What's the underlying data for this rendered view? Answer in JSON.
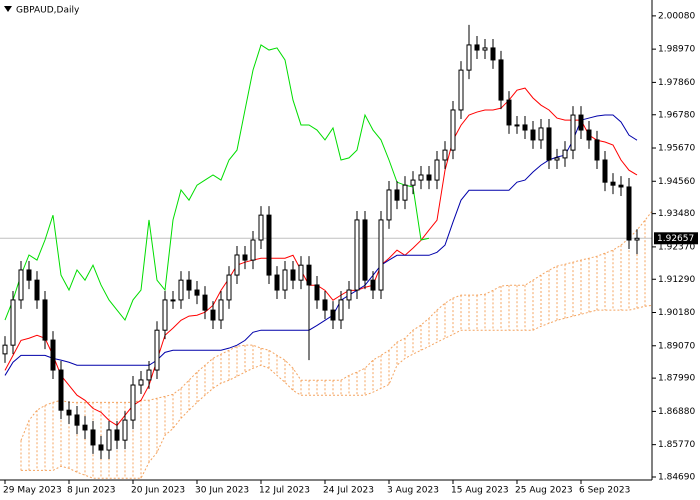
{
  "chart_data": {
    "type": "candlestick",
    "title": "GBPAUD,Daily",
    "categories": [
      "29 May 2023",
      null,
      null,
      null,
      null,
      null,
      null,
      null,
      "8 Jun 2023",
      null,
      null,
      null,
      null,
      null,
      null,
      null,
      "20 Jun 2023",
      null,
      null,
      null,
      null,
      null,
      null,
      null,
      "30 Jun 2023",
      null,
      null,
      null,
      null,
      null,
      null,
      null,
      "12 Jul 2023",
      null,
      null,
      null,
      null,
      null,
      null,
      null,
      "24 Jul 2023",
      null,
      null,
      null,
      null,
      null,
      null,
      null,
      "3 Aug 2023",
      null,
      null,
      null,
      null,
      null,
      null,
      null,
      "15 Aug 2023",
      null,
      null,
      null,
      null,
      null,
      null,
      null,
      "25 Aug 2023",
      null,
      null,
      null,
      null,
      null,
      null,
      null,
      "6 Sep 2023",
      null,
      null,
      null,
      null,
      null,
      null,
      null,
      null,
      null
    ],
    "open": [
      1.888,
      1.8909,
      1.906,
      1.916,
      1.9126,
      1.906,
      1.8926,
      1.8826,
      1.8692,
      1.8676,
      1.8642,
      1.8626,
      1.8576,
      1.8559,
      1.8626,
      1.8592,
      1.8659,
      1.8776,
      1.8793,
      1.8826,
      1.8959,
      1.906,
      1.906,
      1.9126,
      1.9093,
      1.9076,
      1.9026,
      1.8993,
      1.906,
      1.9143,
      1.921,
      1.9193,
      1.926,
      1.9343,
      1.9143,
      1.9093,
      1.916,
      1.9126,
      1.9176,
      1.911,
      1.906,
      1.9026,
      1.8993,
      1.906,
      1.9093,
      1.9327,
      1.9126,
      1.9093,
      1.9327,
      1.9427,
      1.9393,
      1.9443,
      1.946,
      1.9477,
      1.946,
      1.9527,
      1.956,
      1.9694,
      1.9827,
      1.9911,
      1.9894,
      1.9901,
      1.9861,
      1.9727,
      1.9644,
      1.9644,
      1.9627,
      1.9594,
      1.9634,
      1.9527,
      1.9534,
      1.956,
      1.9677,
      1.9627,
      1.9594,
      1.9527,
      1.9453,
      1.9443,
      1.9437,
      1.926,
      null,
      null
    ],
    "high": [
      1.8939,
      1.909,
      1.919,
      1.919,
      1.9156,
      1.909,
      1.8956,
      1.8856,
      1.8722,
      1.8706,
      1.8672,
      1.8656,
      1.8606,
      1.8656,
      1.8656,
      1.8689,
      1.8806,
      1.8823,
      1.8856,
      1.8989,
      1.909,
      1.909,
      1.9156,
      1.9156,
      1.9123,
      1.9106,
      1.9056,
      1.909,
      1.9173,
      1.924,
      1.924,
      1.929,
      1.9373,
      1.9373,
      1.9173,
      1.919,
      1.919,
      1.9206,
      1.9206,
      1.914,
      1.909,
      1.9056,
      1.909,
      1.9123,
      1.9357,
      1.9357,
      1.9156,
      1.9357,
      1.9457,
      1.9457,
      1.9473,
      1.949,
      1.9507,
      1.9507,
      1.9557,
      1.959,
      1.9724,
      1.9857,
      1.9978,
      1.9941,
      1.9931,
      1.9931,
      1.9891,
      1.9757,
      1.9674,
      1.9674,
      1.9657,
      1.9664,
      1.9664,
      1.9564,
      1.959,
      1.9707,
      1.9707,
      1.9657,
      1.9624,
      1.9557,
      1.9483,
      1.9473,
      1.9467,
      1.9296,
      null,
      null
    ],
    "low": [
      1.885,
      1.8879,
      1.903,
      1.9096,
      1.903,
      1.8896,
      1.8796,
      1.8662,
      1.8646,
      1.8612,
      1.8596,
      1.8546,
      1.8529,
      1.8529,
      1.8562,
      1.8562,
      1.8629,
      1.8746,
      1.8763,
      1.8796,
      1.8929,
      1.903,
      1.903,
      1.9063,
      1.9046,
      1.8996,
      1.8963,
      1.8963,
      1.903,
      1.9113,
      1.9163,
      1.9163,
      1.923,
      1.9113,
      1.9063,
      1.9063,
      1.9096,
      1.9096,
      1.8859,
      1.903,
      1.8996,
      1.8963,
      1.8963,
      1.903,
      1.9063,
      1.9096,
      1.9063,
      1.9063,
      1.9297,
      1.9363,
      1.9363,
      1.9413,
      1.943,
      1.943,
      1.943,
      1.9497,
      1.953,
      1.9664,
      1.9797,
      1.9864,
      1.9864,
      1.9831,
      1.9697,
      1.9614,
      1.9614,
      1.9597,
      1.9564,
      1.9564,
      1.9497,
      1.9497,
      1.9504,
      1.953,
      1.9597,
      1.9564,
      1.9497,
      1.9423,
      1.9413,
      1.9407,
      1.923,
      1.9213,
      null,
      null
    ],
    "close": [
      1.8909,
      1.906,
      1.916,
      1.9126,
      1.906,
      1.8926,
      1.8826,
      1.8692,
      1.8676,
      1.8642,
      1.8626,
      1.8576,
      1.8559,
      1.8626,
      1.8592,
      1.8659,
      1.8776,
      1.8793,
      1.8826,
      1.8959,
      1.906,
      1.906,
      1.9126,
      1.9093,
      1.9076,
      1.9026,
      1.8993,
      1.906,
      1.9143,
      1.921,
      1.9193,
      1.926,
      1.9343,
      1.9143,
      1.9093,
      1.916,
      1.9126,
      1.9176,
      1.911,
      1.906,
      1.9026,
      1.8993,
      1.906,
      1.9093,
      1.9327,
      1.9126,
      1.9093,
      1.9327,
      1.9427,
      1.9393,
      1.9443,
      1.946,
      1.9477,
      1.946,
      1.9527,
      1.956,
      1.9694,
      1.9827,
      1.9911,
      1.9894,
      1.9901,
      1.9861,
      1.9727,
      1.9644,
      1.9644,
      1.9627,
      1.9594,
      1.9634,
      1.9527,
      1.9534,
      1.956,
      1.9677,
      1.9627,
      1.9594,
      1.9527,
      1.9453,
      1.9443,
      1.9437,
      1.926,
      1.92657,
      null,
      null
    ],
    "candle_colors": {
      "up": "#ffffff",
      "down": "#000000",
      "edge": "#000000"
    },
    "lines": [
      {
        "color": "#ff0000",
        "values": [
          1.8825,
          1.8875,
          1.8925,
          1.8932,
          1.8942,
          1.8932,
          1.8875,
          1.8808,
          1.8775,
          1.8742,
          1.8725,
          1.8698,
          1.8685,
          1.8658,
          1.8641,
          1.8675,
          1.8708,
          1.8725,
          1.8775,
          1.8859,
          1.8942,
          1.8966,
          1.8992,
          1.9006,
          1.9009,
          1.9019,
          1.9042,
          1.9092,
          1.9132,
          1.9176,
          1.9186,
          1.9193,
          1.9199,
          1.9199,
          1.9199,
          1.9199,
          1.9209,
          1.9159,
          1.9109,
          1.9109,
          1.9092,
          1.9059,
          1.9076,
          1.9092,
          1.9092,
          1.9102,
          1.9109,
          1.9176,
          1.9199,
          1.9226,
          1.9209,
          1.9233,
          1.9259,
          1.9293,
          1.9326,
          1.9493,
          1.9593,
          1.9643,
          1.9677,
          1.9687,
          1.9694,
          1.9694,
          1.97,
          1.9727,
          1.976,
          1.9767,
          1.9734,
          1.971,
          1.9694,
          1.9667,
          1.966,
          1.966,
          1.966,
          1.961,
          1.9593,
          1.9587,
          1.9577,
          1.9527,
          1.9493,
          1.9477,
          null,
          null
        ]
      },
      {
        "color": "#0000aa",
        "values": [
          1.8808,
          1.8852,
          1.8875,
          1.8875,
          1.8875,
          1.8875,
          1.8865,
          1.8859,
          1.8852,
          1.8842,
          1.8842,
          1.8842,
          1.8842,
          1.8842,
          1.8842,
          1.8842,
          1.8842,
          1.8842,
          1.8842,
          1.8859,
          1.8885,
          1.8892,
          1.8892,
          1.8892,
          1.8892,
          1.8892,
          1.8892,
          1.8892,
          1.8899,
          1.8909,
          1.8925,
          1.8952,
          1.8959,
          1.8959,
          1.8959,
          1.8959,
          1.8959,
          1.8959,
          1.8959,
          1.8975,
          1.8992,
          1.9009,
          1.9059,
          1.9076,
          1.9092,
          1.9109,
          1.9142,
          1.9176,
          1.9193,
          1.9209,
          1.9209,
          1.9209,
          1.9209,
          1.9209,
          1.9219,
          1.9243,
          1.932,
          1.9393,
          1.9426,
          1.9426,
          1.9426,
          1.9426,
          1.9426,
          1.9426,
          1.9453,
          1.946,
          1.9487,
          1.951,
          1.9527,
          1.9537,
          1.9543,
          1.9593,
          1.966,
          1.9667,
          1.9674,
          1.9677,
          1.9677,
          1.9654,
          1.961,
          1.9593,
          null,
          null
        ]
      },
      {
        "color": "#00dd00",
        "values": [
          1.8993,
          1.906,
          1.9143,
          1.921,
          1.9193,
          1.926,
          1.9343,
          1.9143,
          1.9093,
          1.916,
          1.9126,
          1.9176,
          1.911,
          1.906,
          1.9026,
          1.8993,
          1.906,
          1.9093,
          1.9327,
          1.9126,
          1.9093,
          1.9327,
          1.9427,
          1.9393,
          1.9443,
          1.946,
          1.9477,
          1.946,
          1.9527,
          1.956,
          1.9694,
          1.9827,
          1.9911,
          1.9894,
          1.9901,
          1.9861,
          1.9727,
          1.9644,
          1.9644,
          1.9627,
          1.9594,
          1.9634,
          1.9527,
          1.9534,
          1.956,
          1.9677,
          1.9627,
          1.9594,
          1.9527,
          1.9453,
          1.9443,
          1.9437,
          1.926,
          1.92657,
          null,
          null,
          null,
          null,
          null,
          null,
          null,
          null,
          null,
          null,
          null,
          null,
          null,
          null,
          null,
          null,
          null,
          null,
          null,
          null,
          null,
          null,
          null,
          null
        ]
      }
    ],
    "cloud": {
      "color": "#f4a460",
      "upper": [
        null,
        null,
        1.8591,
        1.8658,
        1.8692,
        1.8708,
        1.8718,
        1.8725,
        1.8718,
        1.8718,
        1.8718,
        1.8718,
        1.8718,
        1.8718,
        1.8718,
        1.8718,
        1.8718,
        1.8725,
        1.8725,
        1.8732,
        1.8738,
        1.8745,
        1.8765,
        1.8792,
        1.8819,
        1.8842,
        1.8865,
        1.8879,
        1.8892,
        1.8905,
        1.8909,
        1.8909,
        1.8899,
        1.8892,
        1.8875,
        1.8859,
        1.8832,
        1.8792,
        1.8792,
        1.8792,
        1.8792,
        1.8792,
        1.8792,
        1.8808,
        1.8819,
        1.8832,
        1.8859,
        1.8875,
        1.8892,
        1.8919,
        1.8932,
        1.8959,
        1.8976,
        1.8999,
        1.9026,
        1.9049,
        1.9066,
        1.9076,
        1.9076,
        1.9076,
        1.9079,
        1.9092,
        1.9106,
        1.9109,
        1.9109,
        1.9109,
        1.9126,
        1.9143,
        1.9159,
        1.9173,
        1.9179,
        1.9186,
        1.9193,
        1.9199,
        1.9206,
        1.9216,
        1.9226,
        1.9243,
        1.9266,
        1.9293,
        1.9326,
        1.936
      ],
      "lower": [
        null,
        null,
        1.8491,
        1.8491,
        1.8491,
        1.8491,
        1.8491,
        1.8505,
        1.8498,
        1.8485,
        1.8475,
        1.8465,
        1.8465,
        1.8465,
        1.8465,
        1.8465,
        1.8465,
        1.8465,
        1.8518,
        1.8551,
        1.8608,
        1.8631,
        1.8665,
        1.8692,
        1.8718,
        1.8742,
        1.8765,
        1.8782,
        1.8792,
        1.8805,
        1.8819,
        1.8832,
        1.8842,
        1.8832,
        1.8808,
        1.8785,
        1.8758,
        1.8742,
        1.8742,
        1.8742,
        1.8742,
        1.8742,
        1.8742,
        1.8742,
        1.8742,
        1.8742,
        1.8752,
        1.8765,
        1.8778,
        1.8842,
        1.8865,
        1.8879,
        1.8892,
        1.8905,
        1.8919,
        1.8932,
        1.8945,
        1.8959,
        1.8959,
        1.8959,
        1.8959,
        1.8959,
        1.8959,
        1.8959,
        1.8959,
        1.8959,
        1.8959,
        1.8972,
        1.8982,
        1.8992,
        1.8999,
        1.9006,
        1.9012,
        1.9019,
        1.9026,
        1.9026,
        1.9026,
        1.9026,
        1.9026,
        1.9032,
        1.9039,
        1.9042
      ]
    },
    "last_price": {
      "value": 1.92657,
      "label": "1.92657"
    },
    "ylim": [
      1.8449,
      2.0061
    ],
    "yticks": [
      {
        "value": 2.0008,
        "label": "2.00080"
      },
      {
        "value": 1.9897,
        "label": "1.98970"
      },
      {
        "value": 1.9786,
        "label": "1.97860"
      },
      {
        "value": 1.9678,
        "label": "1.96780"
      },
      {
        "value": 1.9567,
        "label": "1.95670"
      },
      {
        "value": 1.9456,
        "label": "1.94560"
      },
      {
        "value": 1.9348,
        "label": "1.93480"
      },
      {
        "value": 1.9237,
        "label": "1.92370"
      },
      {
        "value": 1.9129,
        "label": "1.91290"
      },
      {
        "value": 1.9018,
        "label": "1.90180"
      },
      {
        "value": 1.8907,
        "label": "1.89070"
      },
      {
        "value": 1.8799,
        "label": "1.87990"
      },
      {
        "value": 1.8688,
        "label": "1.86880"
      },
      {
        "value": 1.8577,
        "label": "1.85770"
      },
      {
        "value": 1.8469,
        "label": "1.84690"
      }
    ]
  }
}
